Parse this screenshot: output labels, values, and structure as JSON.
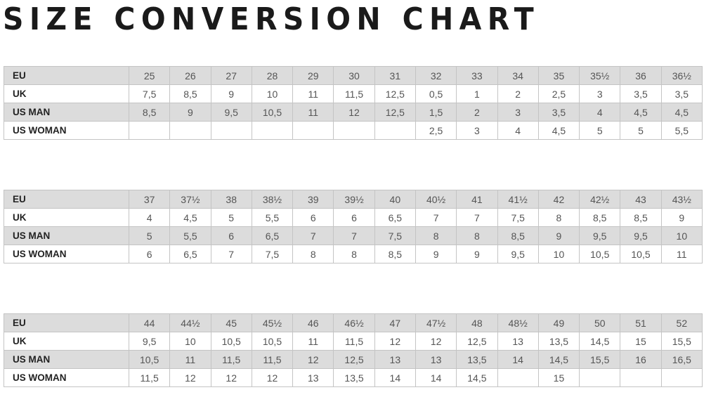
{
  "title": "SIZE CONVERSION CHART",
  "tables": [
    {
      "rows": [
        {
          "label": "EU",
          "values": [
            "25",
            "26",
            "27",
            "28",
            "29",
            "30",
            "31",
            "32",
            "33",
            "34",
            "35",
            "35½",
            "36",
            "36½"
          ]
        },
        {
          "label": "UK",
          "values": [
            "7,5",
            "8,5",
            "9",
            "10",
            "11",
            "11,5",
            "12,5",
            "0,5",
            "1",
            "2",
            "2,5",
            "3",
            "3,5",
            "3,5"
          ]
        },
        {
          "label": "US MAN",
          "values": [
            "8,5",
            "9",
            "9,5",
            "10,5",
            "11",
            "12",
            "12,5",
            "1,5",
            "2",
            "3",
            "3,5",
            "4",
            "4,5",
            "4,5"
          ]
        },
        {
          "label": "US WOMAN",
          "values": [
            "",
            "",
            "",
            "",
            "",
            "",
            "",
            "2,5",
            "3",
            "4",
            "4,5",
            "5",
            "5",
            "5,5"
          ]
        }
      ]
    },
    {
      "rows": [
        {
          "label": "EU",
          "values": [
            "37",
            "37½",
            "38",
            "38½",
            "39",
            "39½",
            "40",
            "40½",
            "41",
            "41½",
            "42",
            "42½",
            "43",
            "43½"
          ]
        },
        {
          "label": "UK",
          "values": [
            "4",
            "4,5",
            "5",
            "5,5",
            "6",
            "6",
            "6,5",
            "7",
            "7",
            "7,5",
            "8",
            "8,5",
            "8,5",
            "9"
          ]
        },
        {
          "label": "US MAN",
          "values": [
            "5",
            "5,5",
            "6",
            "6,5",
            "7",
            "7",
            "7,5",
            "8",
            "8",
            "8,5",
            "9",
            "9,5",
            "9,5",
            "10"
          ]
        },
        {
          "label": "US WOMAN",
          "values": [
            "6",
            "6,5",
            "7",
            "7,5",
            "8",
            "8",
            "8,5",
            "9",
            "9",
            "9,5",
            "10",
            "10,5",
            "10,5",
            "11"
          ]
        }
      ]
    },
    {
      "rows": [
        {
          "label": "EU",
          "values": [
            "44",
            "44½",
            "45",
            "45½",
            "46",
            "46½",
            "47",
            "47½",
            "48",
            "48½",
            "49",
            "50",
            "51",
            "52"
          ]
        },
        {
          "label": "UK",
          "values": [
            "9,5",
            "10",
            "10,5",
            "10,5",
            "11",
            "11,5",
            "12",
            "12",
            "12,5",
            "13",
            "13,5",
            "14,5",
            "15",
            "15,5"
          ]
        },
        {
          "label": "US MAN",
          "values": [
            "10,5",
            "11",
            "11,5",
            "11,5",
            "12",
            "12,5",
            "13",
            "13",
            "13,5",
            "14",
            "14,5",
            "15,5",
            "16",
            "16,5"
          ]
        },
        {
          "label": "US WOMAN",
          "values": [
            "11,5",
            "12",
            "12",
            "12",
            "13",
            "13,5",
            "14",
            "14",
            "14,5",
            "",
            "15",
            "",
            "",
            ""
          ]
        }
      ]
    }
  ],
  "colors": {
    "shaded_row": "#dcdcdc",
    "border": "#c4c4c4"
  }
}
